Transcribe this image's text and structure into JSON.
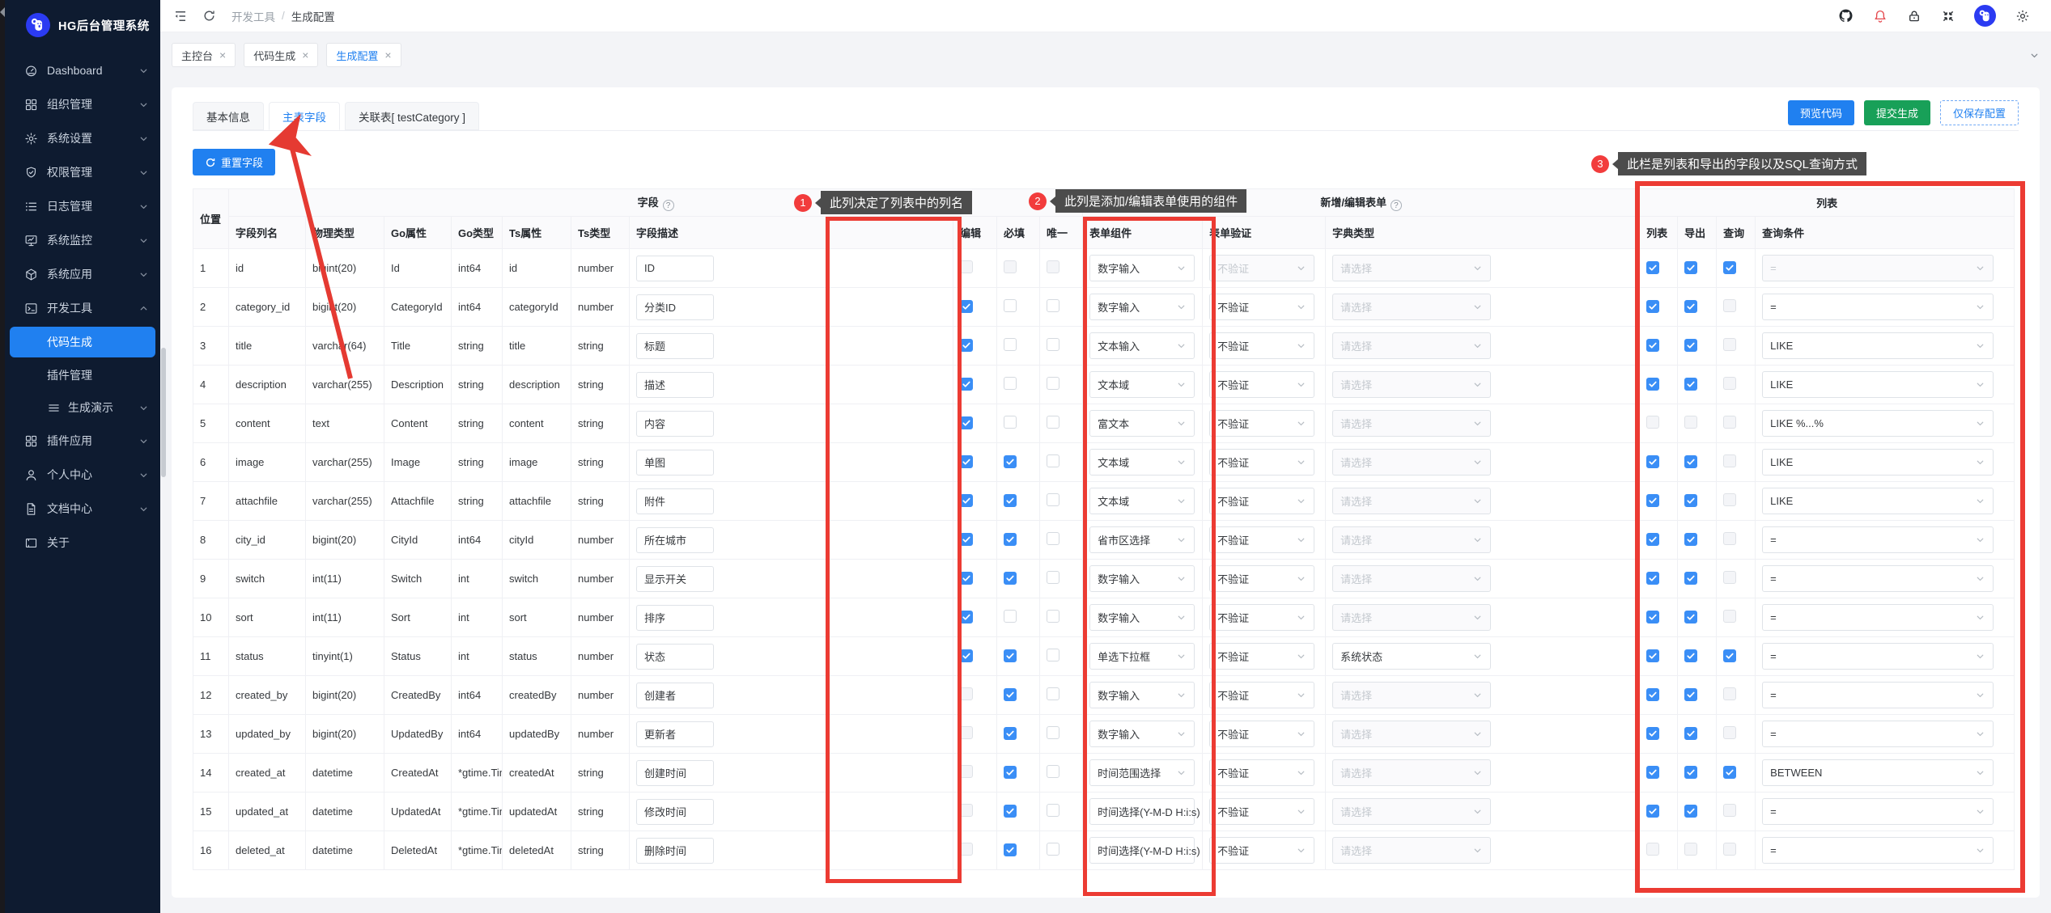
{
  "app": {
    "title": "HG后台管理系统"
  },
  "sidebar": {
    "items": [
      {
        "id": "dashboard",
        "label": "Dashboard",
        "icon": "dashboard-icon",
        "chevron": "down"
      },
      {
        "id": "org",
        "label": "组织管理",
        "icon": "grid-icon",
        "chevron": "down"
      },
      {
        "id": "sys-set",
        "label": "系统设置",
        "icon": "gear-icon",
        "chevron": "down"
      },
      {
        "id": "perm",
        "label": "权限管理",
        "icon": "shield-icon",
        "chevron": "down"
      },
      {
        "id": "log",
        "label": "日志管理",
        "icon": "list-icon",
        "chevron": "down"
      },
      {
        "id": "monitor",
        "label": "系统监控",
        "icon": "monitor-icon",
        "chevron": "down"
      },
      {
        "id": "sys-app",
        "label": "系统应用",
        "icon": "cube-icon",
        "chevron": "down"
      },
      {
        "id": "devtools",
        "label": "开发工具",
        "icon": "terminal-icon",
        "chevron": "up"
      },
      {
        "id": "codegen",
        "label": "代码生成",
        "child": true,
        "active": true
      },
      {
        "id": "plugin-mgr",
        "label": "插件管理",
        "child": true
      },
      {
        "id": "gen-demo",
        "label": "生成演示",
        "child": true,
        "icon": "menu-icon",
        "chevron": "down"
      },
      {
        "id": "plugin-app",
        "label": "插件应用",
        "icon": "grid-icon",
        "chevron": "down"
      },
      {
        "id": "profile",
        "label": "个人中心",
        "icon": "user-icon",
        "chevron": "down"
      },
      {
        "id": "docs",
        "label": "文档中心",
        "icon": "doc-icon",
        "chevron": "down"
      },
      {
        "id": "about",
        "label": "关于",
        "icon": "frame-icon"
      }
    ]
  },
  "topbar": {
    "breadcrumb": {
      "parent": "开发工具",
      "separator": "/",
      "current": "生成配置"
    },
    "right_icons": [
      "github-icon",
      "notification-bell-icon",
      "lock-icon",
      "fullscreen-icon",
      "avatar",
      "settings-gear-icon"
    ]
  },
  "tabchips": {
    "tabs": [
      {
        "label": "主控台",
        "close": "×"
      },
      {
        "label": "代码生成",
        "close": "×"
      },
      {
        "label": "生成配置",
        "close": "×",
        "active": true
      }
    ]
  },
  "page": {
    "tabs": [
      {
        "label": "基本信息"
      },
      {
        "label": "主表字段",
        "active": true
      },
      {
        "label": "关联表[ testCategory ]"
      }
    ],
    "actions": [
      {
        "label": "预览代码",
        "style": "blue"
      },
      {
        "label": "提交生成",
        "style": "green"
      },
      {
        "label": "仅保存配置",
        "style": "ghost"
      }
    ],
    "reset_button": "重置字段"
  },
  "table": {
    "groups": {
      "field": "字段",
      "form": "新增/编辑表单",
      "list": "列表"
    },
    "columns": {
      "pos": "位置",
      "col": "字段列名",
      "ptype": "物理类型",
      "goattr": "Go属性",
      "gotype": "Go类型",
      "tsattr": "Ts属性",
      "tstype": "Ts类型",
      "desc": "字段描述",
      "edit": "编辑",
      "req": "必填",
      "uniq": "唯一",
      "comp": "表单组件",
      "valid": "表单验证",
      "dict": "字典类型",
      "list": "列表",
      "exp": "导出",
      "qry": "查询",
      "cond": "查询条件"
    },
    "dict_placeholder": "请选择",
    "rows": [
      {
        "pos": 1,
        "col": "id",
        "ptype": "bigint(20)",
        "goattr": "Id",
        "gotype": "int64",
        "tsattr": "id",
        "tstype": "number",
        "desc": "ID",
        "edit": false,
        "editDis": true,
        "req": false,
        "reqDis": true,
        "uniq": false,
        "uniqDis": true,
        "comp": "数字输入",
        "valid": "不验证",
        "validDis": true,
        "dict": "请选择",
        "dictSel": false,
        "list": true,
        "exp": true,
        "qry": true,
        "cond": "=",
        "condDis": true
      },
      {
        "pos": 2,
        "col": "category_id",
        "ptype": "bigint(20)",
        "goattr": "CategoryId",
        "gotype": "int64",
        "tsattr": "categoryId",
        "tstype": "number",
        "desc": "分类ID",
        "edit": true,
        "editDis": false,
        "req": false,
        "reqDis": false,
        "uniq": false,
        "uniqDis": false,
        "comp": "数字输入",
        "valid": "不验证",
        "validDis": false,
        "dict": "请选择",
        "dictSel": false,
        "list": true,
        "exp": true,
        "qry": false,
        "cond": "=",
        "condDis": false
      },
      {
        "pos": 3,
        "col": "title",
        "ptype": "varchar(64)",
        "goattr": "Title",
        "gotype": "string",
        "tsattr": "title",
        "tstype": "string",
        "desc": "标题",
        "edit": true,
        "editDis": false,
        "req": false,
        "reqDis": false,
        "uniq": false,
        "uniqDis": false,
        "comp": "文本输入",
        "valid": "不验证",
        "validDis": false,
        "dict": "请选择",
        "dictSel": false,
        "list": true,
        "exp": true,
        "qry": false,
        "cond": "LIKE",
        "condDis": false
      },
      {
        "pos": 4,
        "col": "description",
        "ptype": "varchar(255)",
        "goattr": "Description",
        "gotype": "string",
        "tsattr": "description",
        "tstype": "string",
        "desc": "描述",
        "edit": true,
        "editDis": false,
        "req": false,
        "reqDis": false,
        "uniq": false,
        "uniqDis": false,
        "comp": "文本域",
        "valid": "不验证",
        "validDis": false,
        "dict": "请选择",
        "dictSel": false,
        "list": true,
        "exp": true,
        "qry": false,
        "cond": "LIKE",
        "condDis": false
      },
      {
        "pos": 5,
        "col": "content",
        "ptype": "text",
        "goattr": "Content",
        "gotype": "string",
        "tsattr": "content",
        "tstype": "string",
        "desc": "内容",
        "edit": true,
        "editDis": false,
        "req": false,
        "reqDis": false,
        "uniq": false,
        "uniqDis": false,
        "comp": "富文本",
        "valid": "不验证",
        "validDis": false,
        "dict": "请选择",
        "dictSel": false,
        "list": false,
        "exp": false,
        "qry": false,
        "cond": "LIKE %...%",
        "condDis": false
      },
      {
        "pos": 6,
        "col": "image",
        "ptype": "varchar(255)",
        "goattr": "Image",
        "gotype": "string",
        "tsattr": "image",
        "tstype": "string",
        "desc": "单图",
        "edit": true,
        "editDis": false,
        "req": true,
        "reqDis": false,
        "uniq": false,
        "uniqDis": false,
        "comp": "文本域",
        "valid": "不验证",
        "validDis": false,
        "dict": "请选择",
        "dictSel": false,
        "list": true,
        "exp": true,
        "qry": false,
        "cond": "LIKE",
        "condDis": false
      },
      {
        "pos": 7,
        "col": "attachfile",
        "ptype": "varchar(255)",
        "goattr": "Attachfile",
        "gotype": "string",
        "tsattr": "attachfile",
        "tstype": "string",
        "desc": "附件",
        "edit": true,
        "editDis": false,
        "req": true,
        "reqDis": false,
        "uniq": false,
        "uniqDis": false,
        "comp": "文本域",
        "valid": "不验证",
        "validDis": false,
        "dict": "请选择",
        "dictSel": false,
        "list": true,
        "exp": true,
        "qry": false,
        "cond": "LIKE",
        "condDis": false
      },
      {
        "pos": 8,
        "col": "city_id",
        "ptype": "bigint(20)",
        "goattr": "CityId",
        "gotype": "int64",
        "tsattr": "cityId",
        "tstype": "number",
        "desc": "所在城市",
        "edit": true,
        "editDis": false,
        "req": true,
        "reqDis": false,
        "uniq": false,
        "uniqDis": false,
        "comp": "省市区选择",
        "valid": "不验证",
        "validDis": false,
        "dict": "请选择",
        "dictSel": false,
        "list": true,
        "exp": true,
        "qry": false,
        "cond": "=",
        "condDis": false
      },
      {
        "pos": 9,
        "col": "switch",
        "ptype": "int(11)",
        "goattr": "Switch",
        "gotype": "int",
        "tsattr": "switch",
        "tstype": "number",
        "desc": "显示开关",
        "edit": true,
        "editDis": false,
        "req": true,
        "reqDis": false,
        "uniq": false,
        "uniqDis": false,
        "comp": "数字输入",
        "valid": "不验证",
        "validDis": false,
        "dict": "请选择",
        "dictSel": false,
        "list": true,
        "exp": true,
        "qry": false,
        "cond": "=",
        "condDis": false
      },
      {
        "pos": 10,
        "col": "sort",
        "ptype": "int(11)",
        "goattr": "Sort",
        "gotype": "int",
        "tsattr": "sort",
        "tstype": "number",
        "desc": "排序",
        "edit": true,
        "editDis": false,
        "req": false,
        "reqDis": false,
        "uniq": false,
        "uniqDis": false,
        "comp": "数字输入",
        "valid": "不验证",
        "validDis": false,
        "dict": "请选择",
        "dictSel": false,
        "list": true,
        "exp": true,
        "qry": false,
        "cond": "=",
        "condDis": false
      },
      {
        "pos": 11,
        "col": "status",
        "ptype": "tinyint(1)",
        "goattr": "Status",
        "gotype": "int",
        "tsattr": "status",
        "tstype": "number",
        "desc": "状态",
        "edit": true,
        "editDis": false,
        "req": true,
        "reqDis": false,
        "uniq": false,
        "uniqDis": false,
        "comp": "单选下拉框",
        "valid": "不验证",
        "validDis": false,
        "dict": "系统状态",
        "dictSel": true,
        "list": true,
        "exp": true,
        "qry": true,
        "cond": "=",
        "condDis": false
      },
      {
        "pos": 12,
        "col": "created_by",
        "ptype": "bigint(20)",
        "goattr": "CreatedBy",
        "gotype": "int64",
        "tsattr": "createdBy",
        "tstype": "number",
        "desc": "创建者",
        "edit": false,
        "editDis": true,
        "req": true,
        "reqDis": false,
        "uniq": false,
        "uniqDis": false,
        "comp": "数字输入",
        "valid": "不验证",
        "validDis": false,
        "dict": "请选择",
        "dictSel": false,
        "list": true,
        "exp": true,
        "qry": false,
        "cond": "=",
        "condDis": false
      },
      {
        "pos": 13,
        "col": "updated_by",
        "ptype": "bigint(20)",
        "goattr": "UpdatedBy",
        "gotype": "int64",
        "tsattr": "updatedBy",
        "tstype": "number",
        "desc": "更新者",
        "edit": false,
        "editDis": true,
        "req": true,
        "reqDis": false,
        "uniq": false,
        "uniqDis": false,
        "comp": "数字输入",
        "valid": "不验证",
        "validDis": false,
        "dict": "请选择",
        "dictSel": false,
        "list": true,
        "exp": true,
        "qry": false,
        "cond": "=",
        "condDis": false
      },
      {
        "pos": 14,
        "col": "created_at",
        "ptype": "datetime",
        "goattr": "CreatedAt",
        "gotype": "*gtime.Time",
        "tsattr": "createdAt",
        "tstype": "string",
        "desc": "创建时间",
        "edit": false,
        "editDis": true,
        "req": true,
        "reqDis": false,
        "uniq": false,
        "uniqDis": false,
        "comp": "时间范围选择",
        "valid": "不验证",
        "validDis": false,
        "dict": "请选择",
        "dictSel": false,
        "list": true,
        "exp": true,
        "qry": true,
        "cond": "BETWEEN",
        "condDis": false
      },
      {
        "pos": 15,
        "col": "updated_at",
        "ptype": "datetime",
        "goattr": "UpdatedAt",
        "gotype": "*gtime.Time",
        "tsattr": "updatedAt",
        "tstype": "string",
        "desc": "修改时间",
        "edit": false,
        "editDis": true,
        "req": true,
        "reqDis": false,
        "uniq": false,
        "uniqDis": false,
        "comp": "时间选择(Y-M-D H:i:s)",
        "valid": "不验证",
        "validDis": false,
        "dict": "请选择",
        "dictSel": false,
        "list": true,
        "exp": true,
        "qry": false,
        "cond": "=",
        "condDis": false
      },
      {
        "pos": 16,
        "col": "deleted_at",
        "ptype": "datetime",
        "goattr": "DeletedAt",
        "gotype": "*gtime.Time",
        "tsattr": "deletedAt",
        "tstype": "string",
        "desc": "删除时间",
        "edit": false,
        "editDis": true,
        "req": true,
        "reqDis": false,
        "uniq": false,
        "uniqDis": false,
        "comp": "时间选择(Y-M-D H:i:s)",
        "valid": "不验证",
        "validDis": false,
        "dict": "请选择",
        "dictSel": false,
        "list": false,
        "exp": false,
        "qry": false,
        "cond": "=",
        "condDis": false
      }
    ]
  },
  "annotations": {
    "a1": {
      "num": "1",
      "text": "此列决定了列表中的列名"
    },
    "a2": {
      "num": "2",
      "text": "此列是添加/编辑表单使用的组件"
    },
    "a3": {
      "num": "3",
      "text": "此栏是列表和导出的字段以及SQL查询方式"
    }
  },
  "colors": {
    "primary": "#2080f0",
    "green": "#18a058",
    "annotation_red": "#ec3b33",
    "sidebar_bg": "#0e1b30"
  }
}
